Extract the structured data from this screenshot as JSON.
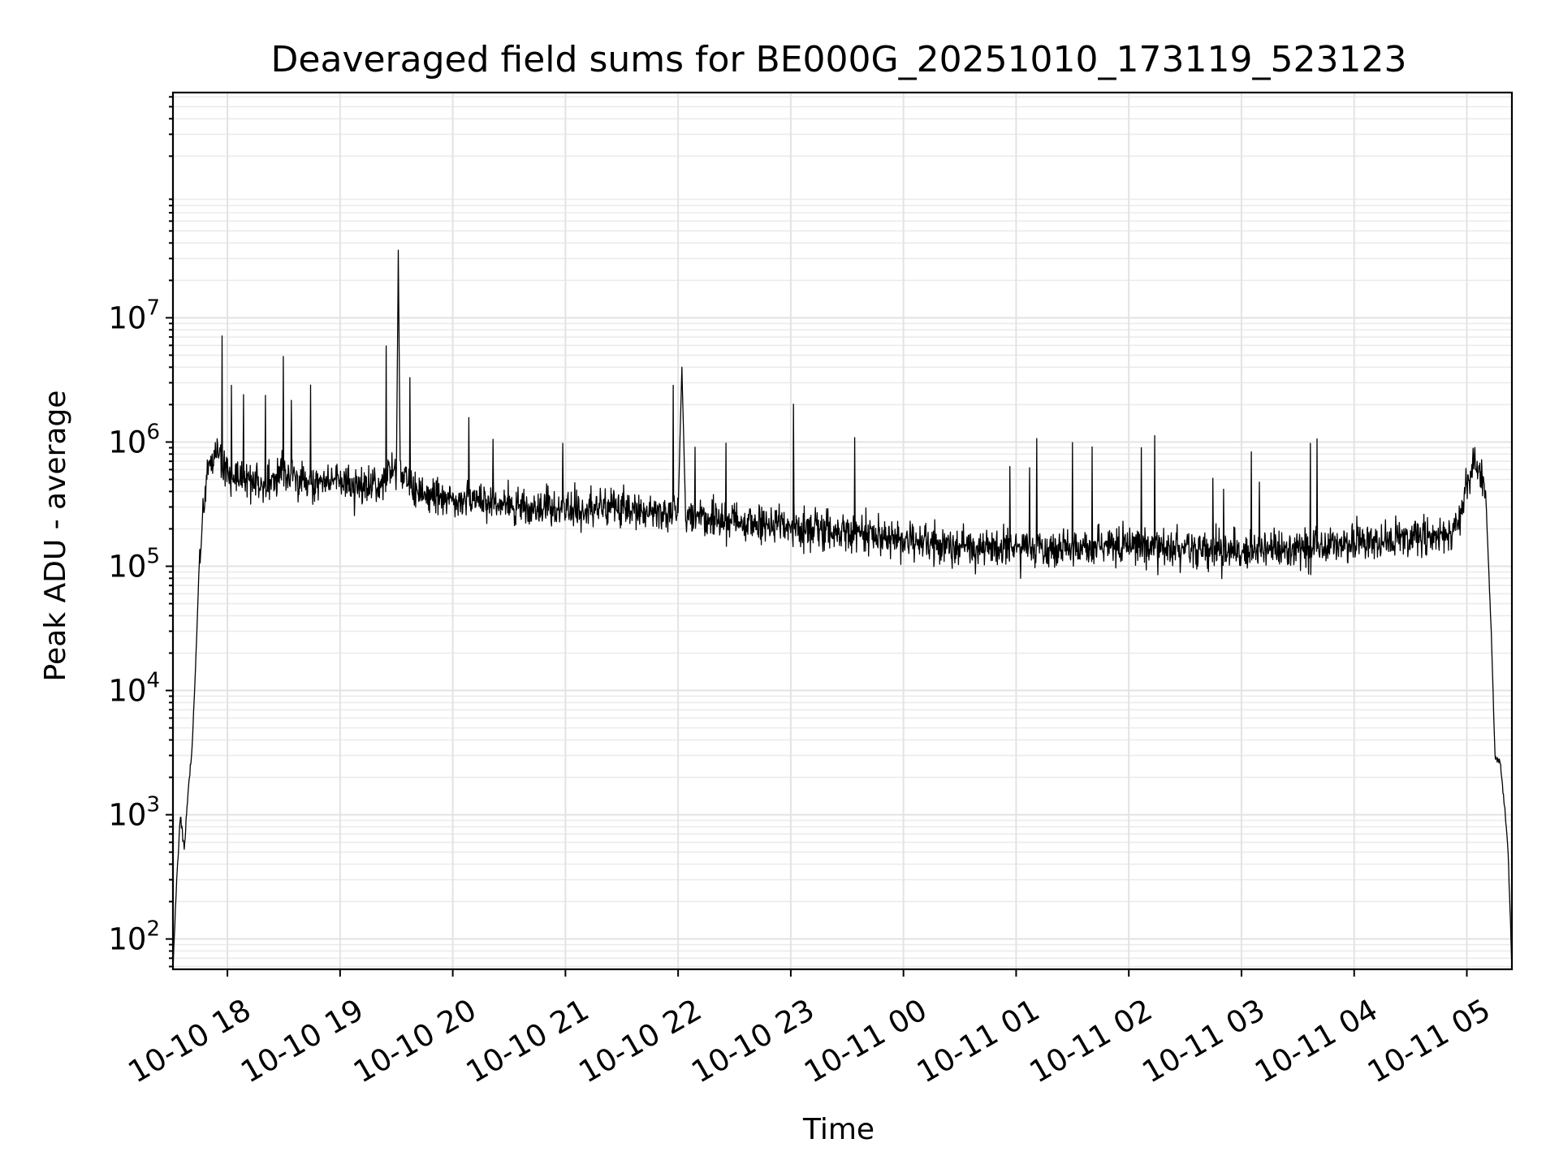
{
  "chart_data": {
    "type": "line",
    "title": "Deaveraged field sums for BE000G_20251010_173119_523123",
    "xlabel": "Time",
    "ylabel": "Peak ADU - average",
    "yscale": "log",
    "ylim": [
      57,
      650000000
    ],
    "xlim": [
      "2025-10-10 17:31",
      "2025-10-11 05:24"
    ],
    "grid": true,
    "grid_which": "both",
    "line_color": "#000000",
    "x_ticks": [
      {
        "t": "2025-10-10 18:00",
        "label": "10-10 18"
      },
      {
        "t": "2025-10-10 19:00",
        "label": "10-10 19"
      },
      {
        "t": "2025-10-10 20:00",
        "label": "10-10 20"
      },
      {
        "t": "2025-10-10 21:00",
        "label": "10-10 21"
      },
      {
        "t": "2025-10-10 22:00",
        "label": "10-10 22"
      },
      {
        "t": "2025-10-10 23:00",
        "label": "10-10 23"
      },
      {
        "t": "2025-10-11 00:00",
        "label": "10-11 00"
      },
      {
        "t": "2025-10-11 01:00",
        "label": "10-11 01"
      },
      {
        "t": "2025-10-11 02:00",
        "label": "10-11 02"
      },
      {
        "t": "2025-10-11 03:00",
        "label": "10-11 03"
      },
      {
        "t": "2025-10-11 04:00",
        "label": "10-11 04"
      },
      {
        "t": "2025-10-11 05:00",
        "label": "10-11 05"
      }
    ],
    "y_ticks": [
      {
        "value": 100,
        "base": "10",
        "exp": "2"
      },
      {
        "value": 1000,
        "base": "10",
        "exp": "3"
      },
      {
        "value": 10000,
        "base": "10",
        "exp": "4"
      },
      {
        "value": 100000,
        "base": "10",
        "exp": "5"
      },
      {
        "value": 1000000,
        "base": "10",
        "exp": "6"
      },
      {
        "value": 10000000,
        "base": "10",
        "exp": "7"
      }
    ],
    "series": [
      {
        "x": [
          "2025-10-10 17:31",
          "2025-10-10 17:33",
          "2025-10-10 17:35",
          "2025-10-10 17:37",
          "2025-10-10 17:39",
          "2025-10-10 17:41",
          "2025-10-10 17:43",
          "2025-10-10 17:45",
          "2025-10-10 17:47",
          "2025-10-10 17:50",
          "2025-10-10 17:55",
          "2025-10-10 18:00",
          "2025-10-10 18:10",
          "2025-10-10 18:20",
          "2025-10-10 18:30",
          "2025-10-10 18:40",
          "2025-10-10 18:50",
          "2025-10-10 19:00",
          "2025-10-10 19:10",
          "2025-10-10 19:20",
          "2025-10-10 19:30",
          "2025-10-10 19:31",
          "2025-10-10 19:32",
          "2025-10-10 19:40",
          "2025-10-10 20:00",
          "2025-10-10 20:20",
          "2025-10-10 20:40",
          "2025-10-10 21:00",
          "2025-10-10 21:20",
          "2025-10-10 21:40",
          "2025-10-10 22:00",
          "2025-10-10 22:02",
          "2025-10-10 22:04",
          "2025-10-10 22:20",
          "2025-10-10 22:40",
          "2025-10-10 23:00",
          "2025-10-10 23:20",
          "2025-10-10 23:40",
          "2025-10-11 00:00",
          "2025-10-11 00:20",
          "2025-10-11 00:40",
          "2025-10-11 01:00",
          "2025-10-11 01:20",
          "2025-10-11 01:40",
          "2025-10-11 02:00",
          "2025-10-11 02:20",
          "2025-10-11 02:40",
          "2025-10-11 03:00",
          "2025-10-11 03:20",
          "2025-10-11 03:40",
          "2025-10-11 04:00",
          "2025-10-11 04:20",
          "2025-10-11 04:40",
          "2025-10-11 04:55",
          "2025-10-11 05:00",
          "2025-10-11 05:05",
          "2025-10-11 05:10",
          "2025-10-11 05:13",
          "2025-10-11 05:15",
          "2025-10-11 05:18",
          "2025-10-11 05:20",
          "2025-10-11 05:22",
          "2025-10-11 05:24"
        ],
        "values": [
          57,
          300,
          1000,
          500,
          1500,
          3000,
          15000,
          100000,
          300000,
          700000,
          800000,
          550000,
          500000,
          450000,
          600000,
          500000,
          450000,
          500000,
          420000,
          450000,
          600000,
          35000000,
          600000,
          400000,
          350000,
          330000,
          300000,
          280000,
          300000,
          280000,
          270000,
          4000000,
          270000,
          240000,
          220000,
          200000,
          190000,
          180000,
          160000,
          150000,
          140000,
          140000,
          140000,
          140000,
          150000,
          140000,
          140000,
          130000,
          140000,
          140000,
          150000,
          160000,
          170000,
          200000,
          500000,
          700000,
          400000,
          30000,
          3000,
          2500,
          1200,
          500,
          57
        ]
      }
    ]
  }
}
